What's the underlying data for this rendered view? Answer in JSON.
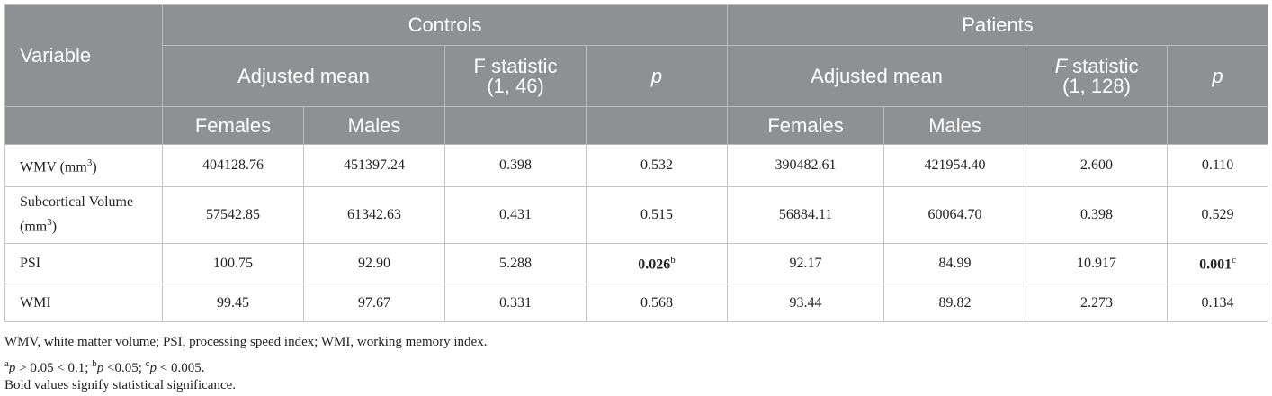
{
  "table": {
    "header": {
      "variable": "Variable",
      "groups": [
        "Controls",
        "Patients"
      ],
      "controls": {
        "adjusted_mean": "Adjusted mean",
        "f_statistic": [
          "F statistic",
          "(1, 46)"
        ],
        "p": "p",
        "sexes": [
          "Females",
          "Males"
        ]
      },
      "patients": {
        "adjusted_mean": "Adjusted mean",
        "f_statistic": [
          "F",
          " statistic",
          "(1, 128)"
        ],
        "p": "p",
        "sexes": [
          "Females",
          "Males"
        ]
      }
    },
    "rows": [
      {
        "variable": [
          "WMV (mm",
          "3",
          ")"
        ],
        "cells": [
          {
            "value": "404128.76"
          },
          {
            "value": "451397.24"
          },
          {
            "value": "0.398"
          },
          {
            "value": "0.532"
          },
          {
            "value": "390482.61"
          },
          {
            "value": "421954.40"
          },
          {
            "value": "2.600"
          },
          {
            "value": "0.110"
          }
        ]
      },
      {
        "variable": [
          "Subcortical Volume (mm",
          "3",
          ")"
        ],
        "cells": [
          {
            "value": "57542.85"
          },
          {
            "value": "61342.63"
          },
          {
            "value": "0.431"
          },
          {
            "value": "0.515"
          },
          {
            "value": "56884.11"
          },
          {
            "value": "60064.70"
          },
          {
            "value": "0.398"
          },
          {
            "value": "0.529"
          }
        ]
      },
      {
        "variable": [
          "PSI"
        ],
        "cells": [
          {
            "value": "100.75"
          },
          {
            "value": "92.90"
          },
          {
            "value": "5.288"
          },
          {
            "value": "0.026",
            "note": "b",
            "bold": true
          },
          {
            "value": "92.17"
          },
          {
            "value": "84.99"
          },
          {
            "value": "10.917"
          },
          {
            "value": "0.001",
            "note": "c",
            "bold": true
          }
        ]
      },
      {
        "variable": [
          "WMI"
        ],
        "cells": [
          {
            "value": "99.45"
          },
          {
            "value": "97.67"
          },
          {
            "value": "0.331"
          },
          {
            "value": "0.568"
          },
          {
            "value": "93.44"
          },
          {
            "value": "89.82"
          },
          {
            "value": "2.273"
          },
          {
            "value": "0.134"
          }
        ]
      }
    ],
    "footnotes": [
      [
        {
          "text": "WMV, white matter volume; PSI, processing speed index; WMI, working memory index."
        }
      ],
      [
        {
          "sup": "a"
        },
        {
          "em": "p"
        },
        {
          "text": " > 0.05 < 0.1; "
        },
        {
          "sup": "b"
        },
        {
          "em": "p"
        },
        {
          "text": " <0.05; "
        },
        {
          "sup": "c"
        },
        {
          "em": "p"
        },
        {
          "text": " < 0.005."
        }
      ],
      [
        {
          "text": "Bold values signify statistical significance."
        }
      ]
    ]
  }
}
